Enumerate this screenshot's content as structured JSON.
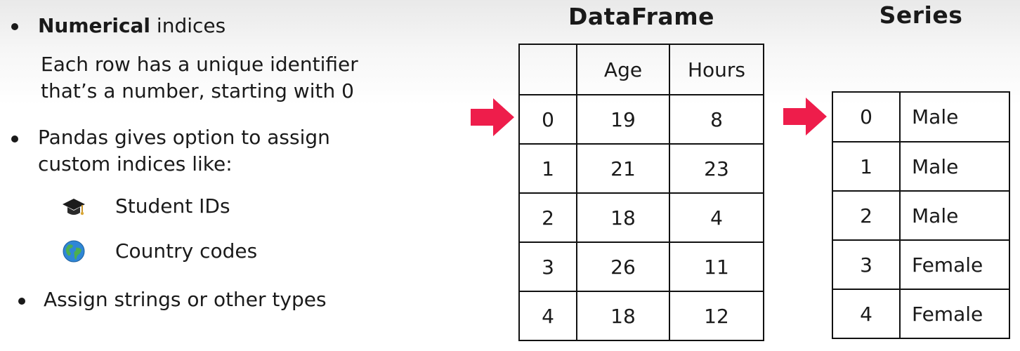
{
  "left": {
    "bullet1_bold": "Numerical",
    "bullet1_rest": " indices",
    "desc_line1": "Each row has a unique identifier",
    "desc_line2": "that’s a number, starting with 0",
    "bullet2_line1": "Pandas gives option to assign",
    "bullet2_line2": "custom indices like:",
    "sub_items": [
      {
        "icon": "graduation-cap-icon",
        "label": "Student IDs"
      },
      {
        "icon": "globe-icon",
        "label": "Country codes"
      }
    ],
    "bullet3": "Assign strings or other types"
  },
  "dataframe": {
    "title": "DataFrame",
    "headers": [
      "",
      "Age",
      "Hours"
    ],
    "rows": [
      [
        "0",
        "19",
        "8"
      ],
      [
        "1",
        "21",
        "23"
      ],
      [
        "2",
        "18",
        "4"
      ],
      [
        "3",
        "26",
        "11"
      ],
      [
        "4",
        "18",
        "12"
      ]
    ]
  },
  "series": {
    "title": "Series",
    "rows": [
      [
        "0",
        "Male"
      ],
      [
        "1",
        "Male"
      ],
      [
        "2",
        "Male"
      ],
      [
        "3",
        "Female"
      ],
      [
        "4",
        "Female"
      ]
    ]
  },
  "colors": {
    "arrow": "#ee1d4b",
    "text": "#1a1a1a",
    "border": "#111111"
  }
}
